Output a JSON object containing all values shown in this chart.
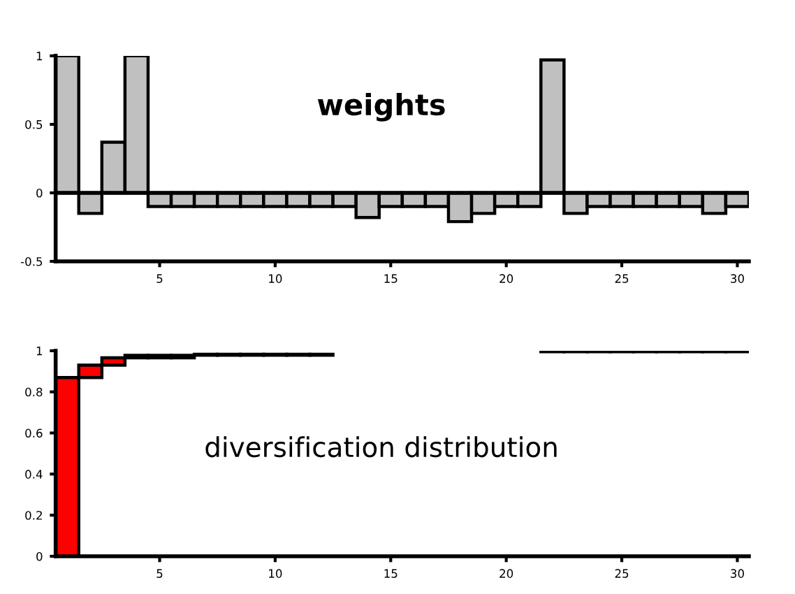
{
  "chart_data": [
    {
      "type": "bar",
      "title": "weights",
      "x": [
        1,
        2,
        3,
        4,
        5,
        6,
        7,
        8,
        9,
        10,
        11,
        12,
        13,
        14,
        15,
        16,
        17,
        18,
        19,
        20,
        21,
        22,
        23,
        24,
        25,
        26,
        27,
        28,
        29,
        30
      ],
      "values": [
        1,
        -0.15,
        0.37,
        1,
        -0.1,
        -0.1,
        -0.1,
        -0.1,
        -0.1,
        -0.1,
        -0.1,
        -0.1,
        -0.1,
        -0.18,
        -0.1,
        -0.1,
        -0.1,
        -0.21,
        -0.15,
        -0.1,
        -0.1,
        0.97,
        -0.15,
        -0.1,
        -0.1,
        -0.1,
        -0.1,
        -0.1,
        -0.15,
        -0.1
      ],
      "color": "#c0c0c0",
      "xlim": [
        0.5,
        30.5
      ],
      "xticks": [
        5,
        10,
        15,
        20,
        25,
        30
      ],
      "ylim": [
        -0.5,
        1
      ],
      "yticks": [
        -0.5,
        0,
        0.5,
        1
      ],
      "ref_lines": [
        {
          "axis": "y",
          "value": 0
        }
      ],
      "grid": false
    },
    {
      "type": "bar",
      "title": "diversification distribution",
      "x": [
        1,
        2,
        3,
        4,
        5,
        6,
        7,
        8,
        9,
        10,
        11,
        12,
        13,
        14,
        15,
        16,
        17,
        18,
        19,
        20,
        21,
        22,
        23,
        24,
        25,
        26,
        27,
        28,
        29,
        30
      ],
      "base": [
        0,
        0.87,
        0.93,
        0.966,
        0.966,
        0.966,
        0.978,
        0.978,
        0.978,
        0.978,
        0.978,
        0.978,
        null,
        null,
        null,
        null,
        null,
        null,
        null,
        null,
        null,
        0.995,
        0.995,
        0.995,
        0.995,
        0.995,
        0.995,
        0.995,
        0.995,
        0.995
      ],
      "values": [
        0.87,
        0.06,
        0.036,
        0.012,
        0.012,
        0.012,
        0.005,
        0.005,
        0.005,
        0.005,
        0.005,
        0.005,
        null,
        null,
        null,
        null,
        null,
        null,
        null,
        null,
        null,
        0.005,
        0.005,
        0.005,
        0.005,
        0.005,
        0.005,
        0.005,
        0.005,
        0.005
      ],
      "color": "#ff0000",
      "xlim": [
        0.5,
        30.5
      ],
      "xticks": [
        5,
        10,
        15,
        20,
        25,
        30
      ],
      "ylim": [
        0,
        1
      ],
      "yticks": [
        0,
        0.2,
        0.4,
        0.6,
        0.8,
        1
      ],
      "grid": false
    }
  ]
}
